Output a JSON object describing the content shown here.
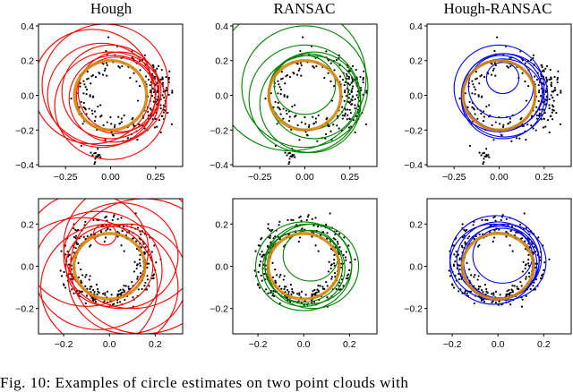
{
  "titles": [
    "Hough",
    "RANSAC",
    "Hough-RANSAC"
  ],
  "caption": "Fig. 10: Examples of circle estimates on two point clouds with",
  "colors": {
    "Hough": "#ff0000",
    "RANSAC": "#008000",
    "Hough-RANSAC": "#0000ff",
    "ground_truth": "#d4870f",
    "points": "#000000"
  },
  "chart_data": [
    {
      "type": "scatter",
      "row": 1,
      "method": "Hough",
      "xlim": [
        -0.4,
        0.4
      ],
      "ylim": [
        -0.41,
        0.41
      ],
      "xticks": [
        "-0.25",
        "0.00",
        "0.25"
      ],
      "yticks": [
        "0.4",
        "0.2",
        "0.0",
        "-0.2",
        "-0.4"
      ],
      "cloud": {
        "cx": 0.06,
        "cy": 0.0,
        "r": 0.21,
        "noise": 0.045,
        "n": 260,
        "seed": 11,
        "tail": [
          -0.08,
          -0.35
        ]
      },
      "ground_truth": [
        0,
        0,
        0.2
      ],
      "estimates": [
        [
          0,
          0.02,
          0.27
        ],
        [
          -0.05,
          0.0,
          0.3
        ],
        [
          0.02,
          -0.02,
          0.25
        ],
        [
          0.03,
          0.0,
          0.22
        ],
        [
          -0.1,
          0.05,
          0.33
        ],
        [
          0.05,
          0.02,
          0.23
        ],
        [
          0.0,
          -0.06,
          0.31
        ],
        [
          -0.03,
          0.06,
          0.35
        ]
      ]
    },
    {
      "type": "scatter",
      "row": 1,
      "method": "RANSAC",
      "xlim": [
        -0.4,
        0.4
      ],
      "ylim": [
        -0.41,
        0.41
      ],
      "xticks": [
        "-0.25",
        "0.00",
        "0.25"
      ],
      "yticks": [
        "0.4",
        "0.2",
        "0.0",
        "-0.2",
        "-0.4"
      ],
      "cloud": {
        "cx": 0.06,
        "cy": 0.0,
        "r": 0.21,
        "noise": 0.045,
        "n": 260,
        "seed": 11,
        "tail": [
          -0.08,
          -0.35
        ]
      },
      "ground_truth": [
        0,
        0,
        0.2
      ],
      "estimates": [
        [
          0.0,
          0.05,
          0.35
        ],
        [
          -0.08,
          0.1,
          0.42
        ],
        [
          0.05,
          0.0,
          0.25
        ],
        [
          0.02,
          0.02,
          0.22
        ],
        [
          0.0,
          0.06,
          0.17
        ],
        [
          0.03,
          -0.05,
          0.28
        ],
        [
          0.0,
          -0.02,
          0.31
        ]
      ]
    },
    {
      "type": "scatter",
      "row": 1,
      "method": "Hough-RANSAC",
      "xlim": [
        -0.4,
        0.4
      ],
      "ylim": [
        -0.41,
        0.41
      ],
      "xticks": [
        "-0.25",
        "0.00",
        "0.25"
      ],
      "yticks": [
        "0.4",
        "0.2",
        "0.0",
        "-0.2",
        "-0.4"
      ],
      "cloud": {
        "cx": 0.06,
        "cy": 0.0,
        "r": 0.21,
        "noise": 0.045,
        "n": 260,
        "seed": 11,
        "tail": [
          -0.08,
          -0.35
        ]
      },
      "ground_truth": [
        0,
        0,
        0.2
      ],
      "estimates": [
        [
          0.02,
          0.1,
          0.09
        ],
        [
          0.0,
          0.0,
          0.2
        ],
        [
          0.02,
          0.02,
          0.22
        ],
        [
          0.03,
          0.0,
          0.24
        ],
        [
          0.01,
          0.05,
          0.18
        ],
        [
          0.0,
          0.04,
          0.25
        ],
        [
          0.02,
          -0.02,
          0.23
        ]
      ]
    },
    {
      "type": "scatter",
      "row": 2,
      "method": "Hough",
      "xlim": [
        -0.31,
        0.32
      ],
      "ylim": [
        -0.32,
        0.32
      ],
      "xticks": [
        "-0.2",
        "0.0",
        "0.2"
      ],
      "yticks": [
        "0.2",
        "0.0",
        "-0.2"
      ],
      "cloud": {
        "cx": 0.0,
        "cy": 0.02,
        "r": 0.17,
        "noise": 0.03,
        "n": 300,
        "seed": 23
      },
      "ground_truth": [
        0,
        0,
        0.155
      ],
      "estimates": [
        [
          0.05,
          0.05,
          0.25
        ],
        [
          -0.05,
          -0.02,
          0.28
        ],
        [
          0.1,
          0.1,
          0.3
        ],
        [
          -0.1,
          0.08,
          0.27
        ],
        [
          0.0,
          -0.1,
          0.3
        ],
        [
          0.08,
          -0.06,
          0.26
        ],
        [
          -0.02,
          0.15,
          0.05
        ],
        [
          0.0,
          0.0,
          0.19
        ],
        [
          -0.12,
          -0.1,
          0.33
        ],
        [
          0.15,
          0.0,
          0.32
        ]
      ]
    },
    {
      "type": "scatter",
      "row": 2,
      "method": "RANSAC",
      "xlim": [
        -0.31,
        0.32
      ],
      "ylim": [
        -0.32,
        0.32
      ],
      "xticks": [
        "-0.2",
        "0.0",
        "0.2"
      ],
      "yticks": [
        "0.2",
        "0.0",
        "-0.2"
      ],
      "cloud": {
        "cx": 0.0,
        "cy": 0.02,
        "r": 0.17,
        "noise": 0.03,
        "n": 300,
        "seed": 23
      },
      "ground_truth": [
        0,
        0,
        0.155
      ],
      "estimates": [
        [
          0.0,
          0.0,
          0.21
        ],
        [
          0.03,
          0.05,
          0.12
        ],
        [
          0.0,
          0.0,
          0.17
        ],
        [
          0.02,
          0.01,
          0.19
        ],
        [
          0.0,
          -0.01,
          0.18
        ],
        [
          0.04,
          0.0,
          0.2
        ]
      ]
    },
    {
      "type": "scatter",
      "row": 2,
      "method": "Hough-RANSAC",
      "xlim": [
        -0.31,
        0.32
      ],
      "ylim": [
        -0.32,
        0.32
      ],
      "xticks": [
        "-0.2",
        "0.0",
        "0.2"
      ],
      "yticks": [
        "0.2",
        "0.0",
        "-0.2"
      ],
      "cloud": {
        "cx": 0.0,
        "cy": 0.02,
        "r": 0.17,
        "noise": 0.03,
        "n": 300,
        "seed": 23
      },
      "ground_truth": [
        0,
        0,
        0.155
      ],
      "estimates": [
        [
          0.0,
          0.03,
          0.18
        ],
        [
          0.01,
          0.02,
          0.17
        ],
        [
          -0.02,
          0.01,
          0.19
        ],
        [
          0.02,
          0.05,
          0.13
        ],
        [
          0.0,
          0.0,
          0.16
        ],
        [
          0.03,
          0.02,
          0.18
        ],
        [
          -0.01,
          0.04,
          0.2
        ]
      ]
    }
  ]
}
